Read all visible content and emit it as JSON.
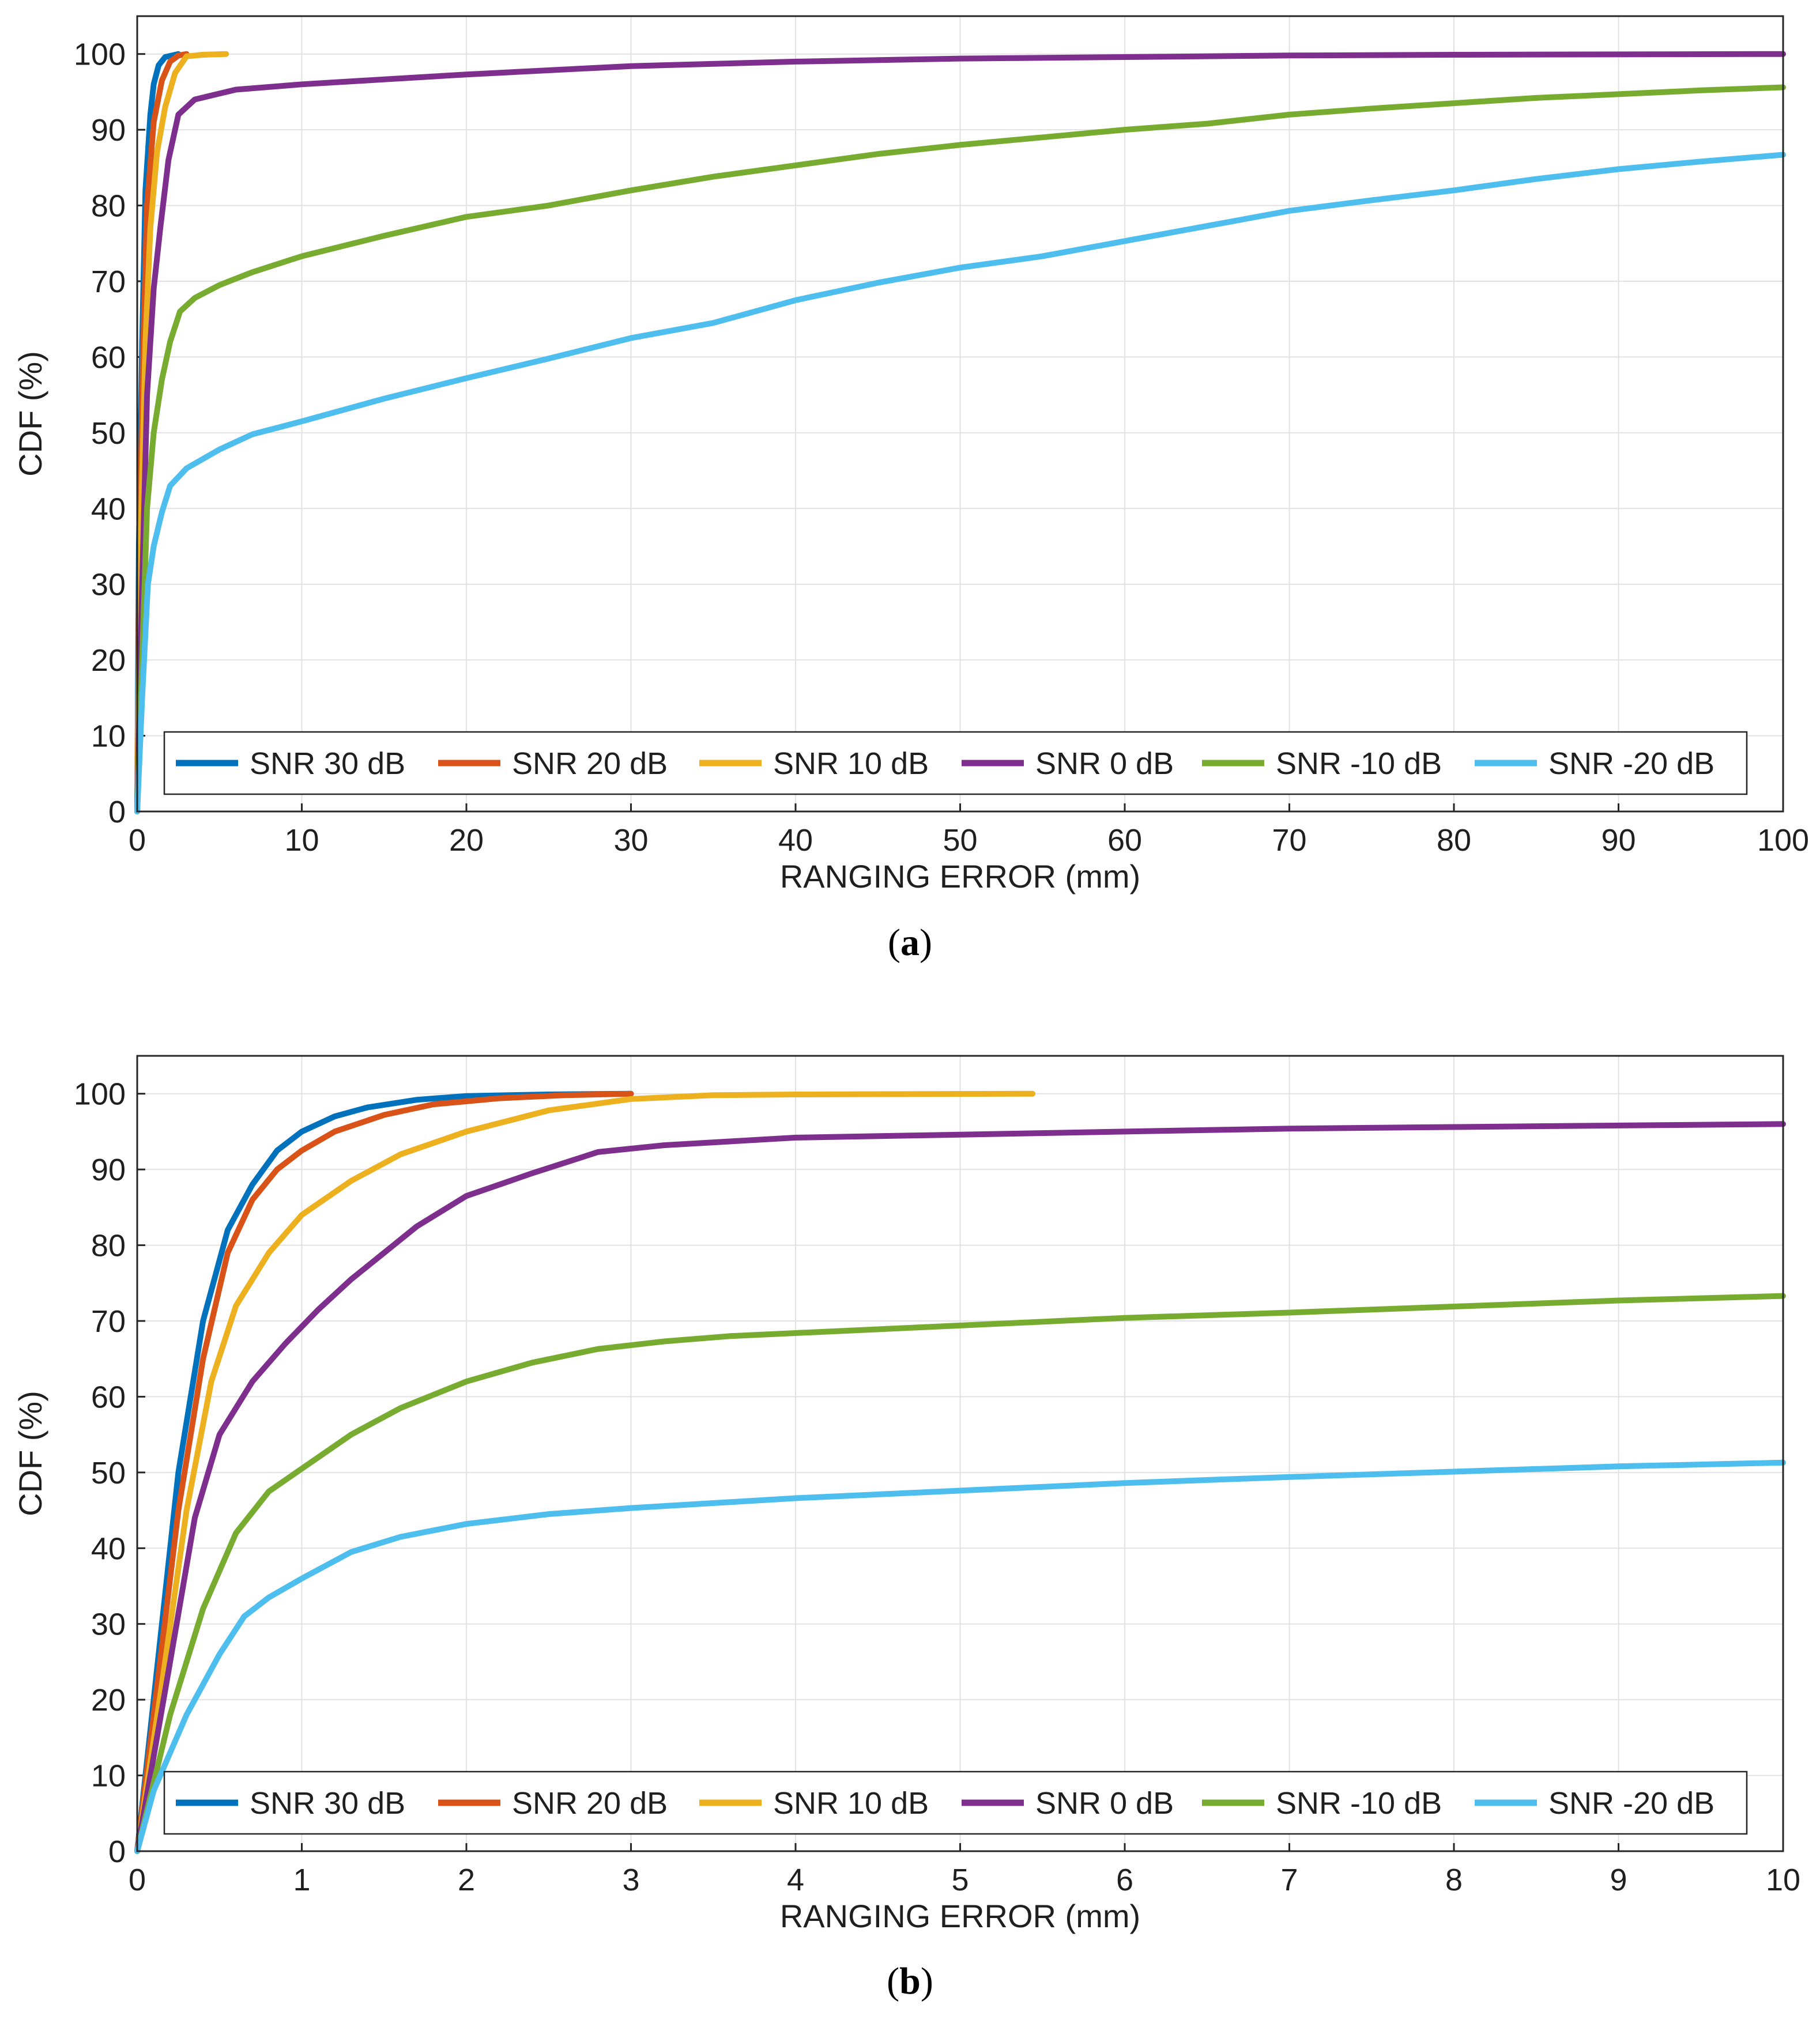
{
  "chart_data": [
    {
      "type": "line",
      "id": "a",
      "caption": "a",
      "xlabel": "RANGING ERROR (mm)",
      "ylabel": "CDF (%)",
      "xlim": [
        0,
        100
      ],
      "ylim": [
        0,
        105
      ],
      "xticks": [
        0,
        10,
        20,
        30,
        40,
        50,
        60,
        70,
        80,
        90,
        100
      ],
      "yticks": [
        0,
        10,
        20,
        30,
        40,
        50,
        60,
        70,
        80,
        90,
        100
      ],
      "grid": true,
      "legend_position": "bottom",
      "series": [
        {
          "name": "SNR 30 dB",
          "color": "#0072BD",
          "points": [
            [
              0,
              0
            ],
            [
              0.1,
              35
            ],
            [
              0.3,
              62
            ],
            [
              0.5,
              82
            ],
            [
              0.8,
              92
            ],
            [
              1.0,
              96
            ],
            [
              1.3,
              98.5
            ],
            [
              1.7,
              99.6
            ],
            [
              2.5,
              100
            ]
          ]
        },
        {
          "name": "SNR 20 dB",
          "color": "#D95319",
          "points": [
            [
              0,
              0
            ],
            [
              0.15,
              35
            ],
            [
              0.35,
              60
            ],
            [
              0.6,
              80
            ],
            [
              1.0,
              91
            ],
            [
              1.5,
              96.5
            ],
            [
              2.0,
              99
            ],
            [
              2.5,
              99.8
            ],
            [
              3.0,
              100
            ]
          ]
        },
        {
          "name": "SNR 10 dB",
          "color": "#EDB120",
          "points": [
            [
              0,
              0
            ],
            [
              0.2,
              35
            ],
            [
              0.5,
              62
            ],
            [
              0.8,
              77
            ],
            [
              1.2,
              87
            ],
            [
              1.7,
              93
            ],
            [
              2.3,
              97.5
            ],
            [
              3.0,
              99.7
            ],
            [
              4.0,
              99.9
            ],
            [
              5.4,
              100
            ]
          ]
        },
        {
          "name": "SNR 0 dB",
          "color": "#7E2F8E",
          "points": [
            [
              0,
              0
            ],
            [
              0.3,
              30
            ],
            [
              0.6,
              55
            ],
            [
              1.0,
              69
            ],
            [
              1.4,
              77
            ],
            [
              1.9,
              86
            ],
            [
              2.5,
              92
            ],
            [
              3.5,
              94
            ],
            [
              6.0,
              95.3
            ],
            [
              10,
              96
            ],
            [
              20,
              97.3
            ],
            [
              30,
              98.4
            ],
            [
              40,
              99
            ],
            [
              50,
              99.4
            ],
            [
              60,
              99.6
            ],
            [
              70,
              99.8
            ],
            [
              80,
              99.9
            ],
            [
              100,
              100
            ]
          ]
        },
        {
          "name": "SNR -10 dB",
          "color": "#77AC30",
          "points": [
            [
              0,
              0
            ],
            [
              0.3,
              20
            ],
            [
              0.6,
              40
            ],
            [
              1.0,
              50
            ],
            [
              1.5,
              57
            ],
            [
              2.0,
              62
            ],
            [
              2.6,
              66
            ],
            [
              3.5,
              67.8
            ],
            [
              5,
              69.5
            ],
            [
              7,
              71.2
            ],
            [
              10,
              73.3
            ],
            [
              15,
              76
            ],
            [
              20,
              78.5
            ],
            [
              25,
              80
            ],
            [
              30,
              82
            ],
            [
              35,
              83.8
            ],
            [
              40,
              85.3
            ],
            [
              45,
              86.8
            ],
            [
              50,
              88
            ],
            [
              55,
              89
            ],
            [
              60,
              90
            ],
            [
              65,
              90.8
            ],
            [
              70,
              92
            ],
            [
              75,
              92.8
            ],
            [
              80,
              93.5
            ],
            [
              85,
              94.2
            ],
            [
              90,
              94.7
            ],
            [
              95,
              95.2
            ],
            [
              100,
              95.6
            ]
          ]
        },
        {
          "name": "SNR -20 dB",
          "color": "#4DBEEE",
          "points": [
            [
              0,
              0
            ],
            [
              0.3,
              15
            ],
            [
              0.65,
              30
            ],
            [
              1.0,
              35
            ],
            [
              1.5,
              39.5
            ],
            [
              2.0,
              43
            ],
            [
              3.0,
              45.3
            ],
            [
              5.0,
              47.8
            ],
            [
              7,
              49.8
            ],
            [
              10,
              51.5
            ],
            [
              15,
              54.5
            ],
            [
              20,
              57.2
            ],
            [
              25,
              59.8
            ],
            [
              30,
              62.5
            ],
            [
              35,
              64.5
            ],
            [
              40,
              67.5
            ],
            [
              45,
              69.8
            ],
            [
              50,
              71.8
            ],
            [
              55,
              73.3
            ],
            [
              60,
              75.3
            ],
            [
              65,
              77.3
            ],
            [
              70,
              79.3
            ],
            [
              75,
              80.7
            ],
            [
              80,
              82
            ],
            [
              85,
              83.5
            ],
            [
              90,
              84.8
            ],
            [
              95,
              85.8
            ],
            [
              100,
              86.7
            ]
          ]
        }
      ]
    },
    {
      "type": "line",
      "id": "b",
      "caption": "b",
      "xlabel": "RANGING ERROR (mm)",
      "ylabel": "CDF (%)",
      "xlim": [
        0,
        10
      ],
      "ylim": [
        0,
        105
      ],
      "xticks": [
        0,
        1,
        2,
        3,
        4,
        5,
        6,
        7,
        8,
        9,
        10
      ],
      "yticks": [
        0,
        10,
        20,
        30,
        40,
        50,
        60,
        70,
        80,
        90,
        100
      ],
      "grid": true,
      "legend_position": "bottom",
      "series": [
        {
          "name": "SNR 30 dB",
          "color": "#0072BD",
          "points": [
            [
              0,
              0
            ],
            [
              0.1,
              20
            ],
            [
              0.25,
              50
            ],
            [
              0.4,
              70
            ],
            [
              0.55,
              82
            ],
            [
              0.7,
              88
            ],
            [
              0.85,
              92.5
            ],
            [
              1.0,
              95
            ],
            [
              1.2,
              97
            ],
            [
              1.4,
              98.2
            ],
            [
              1.7,
              99.2
            ],
            [
              2.0,
              99.7
            ],
            [
              2.5,
              99.9
            ],
            [
              3.0,
              100
            ]
          ]
        },
        {
          "name": "SNR 20 dB",
          "color": "#D95319",
          "points": [
            [
              0,
              0
            ],
            [
              0.1,
              18
            ],
            [
              0.25,
              45
            ],
            [
              0.4,
              65
            ],
            [
              0.55,
              79
            ],
            [
              0.7,
              86
            ],
            [
              0.85,
              90
            ],
            [
              1.0,
              92.5
            ],
            [
              1.2,
              95
            ],
            [
              1.5,
              97.2
            ],
            [
              1.8,
              98.6
            ],
            [
              2.2,
              99.4
            ],
            [
              2.6,
              99.8
            ],
            [
              3.0,
              100
            ]
          ]
        },
        {
          "name": "SNR 10 dB",
          "color": "#EDB120",
          "points": [
            [
              0,
              0
            ],
            [
              0.15,
              22
            ],
            [
              0.3,
              45
            ],
            [
              0.45,
              62
            ],
            [
              0.6,
              72
            ],
            [
              0.8,
              79
            ],
            [
              1.0,
              84
            ],
            [
              1.3,
              88.5
            ],
            [
              1.6,
              92
            ],
            [
              2.0,
              95
            ],
            [
              2.5,
              97.8
            ],
            [
              3.0,
              99.3
            ],
            [
              3.5,
              99.8
            ],
            [
              4.0,
              99.9
            ],
            [
              5.44,
              100
            ]
          ]
        },
        {
          "name": "SNR 0 dB",
          "color": "#7E2F8E",
          "points": [
            [
              0,
              0
            ],
            [
              0.2,
              25
            ],
            [
              0.35,
              44
            ],
            [
              0.5,
              55
            ],
            [
              0.7,
              62
            ],
            [
              0.9,
              67
            ],
            [
              1.1,
              71.5
            ],
            [
              1.3,
              75.5
            ],
            [
              1.5,
              79
            ],
            [
              1.7,
              82.5
            ],
            [
              2.0,
              86.5
            ],
            [
              2.4,
              89.5
            ],
            [
              2.8,
              92.3
            ],
            [
              3.2,
              93.2
            ],
            [
              3.6,
              93.7
            ],
            [
              4,
              94.2
            ],
            [
              5,
              94.6
            ],
            [
              6,
              95
            ],
            [
              7,
              95.4
            ],
            [
              8,
              95.6
            ],
            [
              9,
              95.8
            ],
            [
              10,
              96
            ]
          ]
        },
        {
          "name": "SNR -10 dB",
          "color": "#77AC30",
          "points": [
            [
              0,
              0
            ],
            [
              0.2,
              18
            ],
            [
              0.4,
              32
            ],
            [
              0.6,
              42
            ],
            [
              0.8,
              47.5
            ],
            [
              1.0,
              50.5
            ],
            [
              1.3,
              55
            ],
            [
              1.6,
              58.5
            ],
            [
              2.0,
              62
            ],
            [
              2.4,
              64.5
            ],
            [
              2.8,
              66.3
            ],
            [
              3.2,
              67.3
            ],
            [
              3.6,
              68
            ],
            [
              4,
              68.4
            ],
            [
              5,
              69.4
            ],
            [
              6,
              70.4
            ],
            [
              7,
              71.1
            ],
            [
              8,
              71.9
            ],
            [
              9,
              72.7
            ],
            [
              10,
              73.3
            ]
          ]
        },
        {
          "name": "SNR -20 dB",
          "color": "#4DBEEE",
          "points": [
            [
              0,
              0
            ],
            [
              0.1,
              8
            ],
            [
              0.3,
              18
            ],
            [
              0.5,
              26
            ],
            [
              0.65,
              31
            ],
            [
              0.8,
              33.5
            ],
            [
              1.0,
              36
            ],
            [
              1.3,
              39.5
            ],
            [
              1.6,
              41.5
            ],
            [
              2.0,
              43.2
            ],
            [
              2.5,
              44.5
            ],
            [
              3.0,
              45.3
            ],
            [
              4,
              46.6
            ],
            [
              5,
              47.6
            ],
            [
              6,
              48.6
            ],
            [
              7,
              49.4
            ],
            [
              8,
              50.1
            ],
            [
              9,
              50.8
            ],
            [
              10,
              51.3
            ]
          ]
        }
      ]
    }
  ]
}
